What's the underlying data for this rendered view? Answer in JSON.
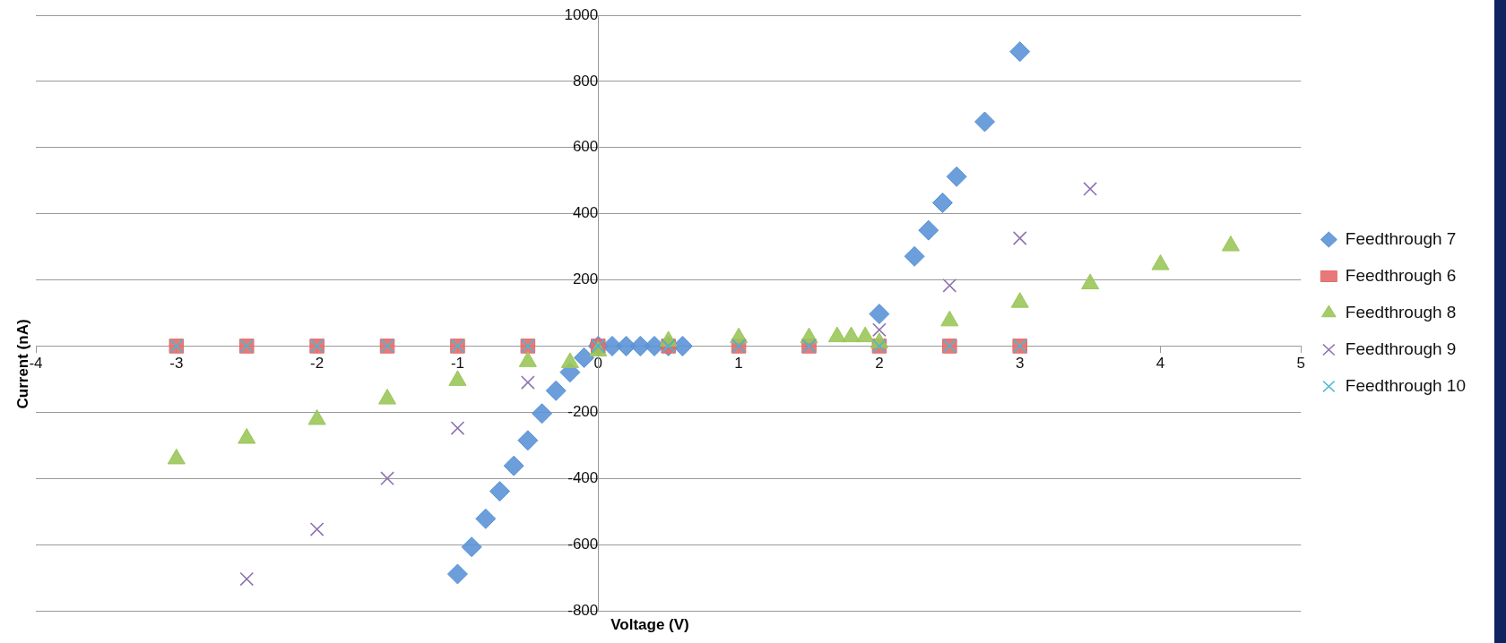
{
  "chart_data": {
    "type": "scatter",
    "xlabel": "Voltage (V)",
    "ylabel": "Current (nA)",
    "xlim": [
      -4,
      5
    ],
    "xticks": [
      -4,
      -3,
      -2,
      -1,
      0,
      1,
      2,
      3,
      4,
      5
    ],
    "ylim": [
      -800,
      1000
    ],
    "yticks": [
      -800,
      -600,
      -400,
      -200,
      0,
      200,
      400,
      600,
      800,
      1000
    ],
    "grid": "y",
    "legend": "right",
    "series": [
      {
        "name": "Feedthrough 7",
        "color": "#5b93d6",
        "marker": "diamond",
        "x": [
          -1,
          -0.9,
          -0.8,
          -0.7,
          -0.6,
          -0.5,
          -0.4,
          -0.3,
          -0.2,
          -0.1,
          0,
          0.1,
          0.2,
          0.3,
          0.4,
          0.5,
          0.6,
          2,
          2.25,
          2.35,
          2.45,
          2.55,
          2.75,
          3
        ],
        "values": [
          -689,
          -607,
          -522,
          -439,
          -362,
          -285,
          -204,
          -135,
          -79,
          -35,
          0,
          0,
          0,
          0,
          0,
          0,
          0,
          97,
          271,
          350,
          433,
          512,
          678,
          890
        ]
      },
      {
        "name": "Feedthrough 6",
        "color": "#e46c6a",
        "marker": "square",
        "x": [
          -3,
          -2.5,
          -2,
          -1.5,
          -1,
          -0.5,
          0,
          0.5,
          1,
          1.5,
          2,
          2.5,
          3
        ],
        "values": [
          0,
          0,
          0,
          0,
          0,
          0,
          0,
          0,
          0,
          0,
          0,
          0,
          0
        ]
      },
      {
        "name": "Feedthrough 8",
        "color": "#9bc65a",
        "marker": "triangle",
        "x": [
          -3,
          -2.5,
          -2,
          -1.5,
          -1,
          -0.5,
          -0.2,
          0,
          0.5,
          1,
          1.5,
          1.7,
          1.8,
          1.9,
          2,
          2.5,
          3,
          3.5,
          4,
          4.5
        ],
        "values": [
          -341,
          -279,
          -222,
          -160,
          -104,
          -47,
          -50,
          -15,
          15,
          25,
          25,
          28,
          28,
          28,
          10,
          76,
          132,
          188,
          246,
          303
        ]
      },
      {
        "name": "Feedthrough 9",
        "color": "#8c72b0",
        "marker": "cross",
        "x": [
          -2.5,
          -2,
          -1.5,
          -1,
          -0.5,
          0,
          0.5,
          1,
          1.5,
          2,
          2.5,
          3,
          3.5
        ],
        "values": [
          -704,
          -554,
          -400,
          -248,
          -110,
          0,
          0,
          0,
          0,
          49,
          183,
          326,
          475
        ]
      },
      {
        "name": "Feedthrough 10",
        "color": "#4bb8d0",
        "marker": "cross",
        "x": [
          -3,
          -2.5,
          -2,
          -1.5,
          -1,
          -0.5,
          0,
          0.5,
          1,
          1.5,
          2,
          2.5,
          3
        ],
        "values": [
          0,
          0,
          0,
          0,
          0,
          0,
          0,
          0,
          0,
          0,
          0,
          0,
          0
        ]
      }
    ]
  }
}
